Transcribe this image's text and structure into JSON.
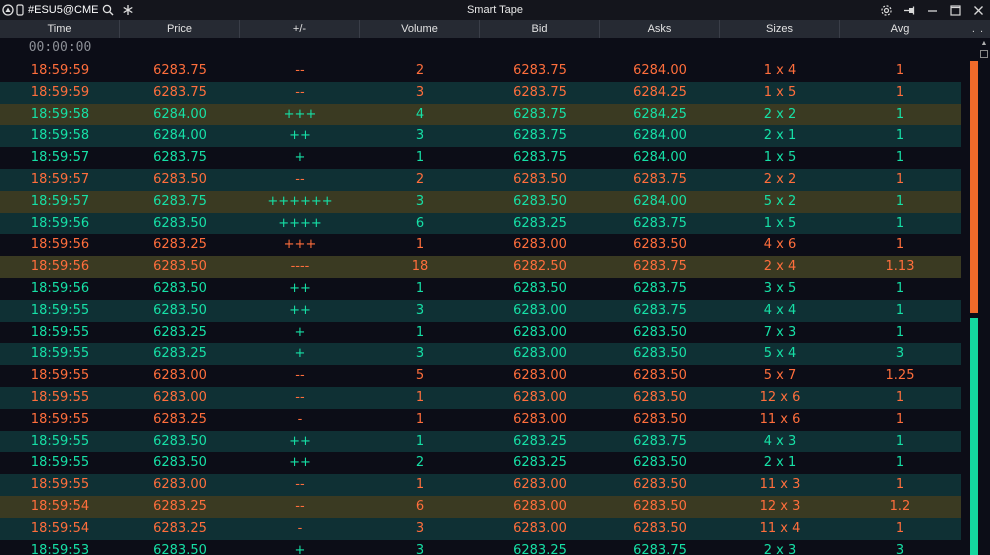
{
  "window": {
    "title": "Smart Tape",
    "symbol": "#ESU5@CME",
    "icons": [
      "app-logo-icon",
      "phone-icon",
      "search-icon",
      "asterisk-icon",
      "settings-icon",
      "pin-icon",
      "minimize-icon",
      "maximize-icon",
      "close-icon"
    ]
  },
  "header": {
    "columns": [
      "Time",
      "Price",
      "+/-",
      "Volume",
      "Bid",
      "Asks",
      "Sizes",
      "Avg"
    ],
    "more": ". ."
  },
  "ghost_time": "00:00:00",
  "colors": {
    "up": "#16e0a6",
    "down": "#ff6e3c",
    "row_dark": "#0c0d17",
    "row_teal": "#0f3034",
    "row_olive": "#3a3a22",
    "scroll_sell": "#f06a2a",
    "scroll_buy": "#14d79e"
  },
  "rows": [
    {
      "time": "18:59:59",
      "price": "6283.75",
      "delta": "--",
      "volume": "2",
      "bid": "6283.75",
      "ask": "6284.00",
      "sizes": "1 x 4",
      "avg": "1",
      "dir": "down",
      "bg": 0
    },
    {
      "time": "18:59:59",
      "price": "6283.75",
      "delta": "--",
      "volume": "3",
      "bid": "6283.75",
      "ask": "6284.25",
      "sizes": "1 x 5",
      "avg": "1",
      "dir": "down",
      "bg": 1
    },
    {
      "time": "18:59:58",
      "price": "6284.00",
      "delta": "+++",
      "volume": "4",
      "bid": "6283.75",
      "ask": "6284.25",
      "sizes": "2 x 2",
      "avg": "1",
      "dir": "up",
      "bg": 2
    },
    {
      "time": "18:59:58",
      "price": "6284.00",
      "delta": "++",
      "volume": "3",
      "bid": "6283.75",
      "ask": "6284.00",
      "sizes": "2 x 1",
      "avg": "1",
      "dir": "up",
      "bg": 1
    },
    {
      "time": "18:59:57",
      "price": "6283.75",
      "delta": "+",
      "volume": "1",
      "bid": "6283.75",
      "ask": "6284.00",
      "sizes": "1 x 5",
      "avg": "1",
      "dir": "up",
      "bg": 0
    },
    {
      "time": "18:59:57",
      "price": "6283.50",
      "delta": "--",
      "volume": "2",
      "bid": "6283.50",
      "ask": "6283.75",
      "sizes": "2 x 2",
      "avg": "1",
      "dir": "down",
      "bg": 1
    },
    {
      "time": "18:59:57",
      "price": "6283.75",
      "delta": "++++++",
      "volume": "3",
      "bid": "6283.50",
      "ask": "6284.00",
      "sizes": "5 x 2",
      "avg": "1",
      "dir": "up",
      "bg": 2
    },
    {
      "time": "18:59:56",
      "price": "6283.50",
      "delta": "++++",
      "volume": "6",
      "bid": "6283.25",
      "ask": "6283.75",
      "sizes": "1 x 5",
      "avg": "1",
      "dir": "up",
      "bg": 1
    },
    {
      "time": "18:59:56",
      "price": "6283.25",
      "delta": "+++",
      "volume": "1",
      "bid": "6283.00",
      "ask": "6283.50",
      "sizes": "4 x 6",
      "avg": "1",
      "dir": "down",
      "bg": 0
    },
    {
      "time": "18:59:56",
      "price": "6283.50",
      "delta": "----",
      "volume": "18",
      "bid": "6282.50",
      "ask": "6283.75",
      "sizes": "2 x 4",
      "avg": "1.13",
      "dir": "down",
      "bg": 2
    },
    {
      "time": "18:59:56",
      "price": "6283.50",
      "delta": "++",
      "volume": "1",
      "bid": "6283.50",
      "ask": "6283.75",
      "sizes": "3 x 5",
      "avg": "1",
      "dir": "up",
      "bg": 0
    },
    {
      "time": "18:59:55",
      "price": "6283.50",
      "delta": "++",
      "volume": "3",
      "bid": "6283.00",
      "ask": "6283.75",
      "sizes": "4 x 4",
      "avg": "1",
      "dir": "up",
      "bg": 1
    },
    {
      "time": "18:59:55",
      "price": "6283.25",
      "delta": "+",
      "volume": "1",
      "bid": "6283.00",
      "ask": "6283.50",
      "sizes": "7 x 3",
      "avg": "1",
      "dir": "up",
      "bg": 0
    },
    {
      "time": "18:59:55",
      "price": "6283.25",
      "delta": "+",
      "volume": "3",
      "bid": "6283.00",
      "ask": "6283.50",
      "sizes": "5 x 4",
      "avg": "3",
      "dir": "up",
      "bg": 1
    },
    {
      "time": "18:59:55",
      "price": "6283.00",
      "delta": "--",
      "volume": "5",
      "bid": "6283.00",
      "ask": "6283.50",
      "sizes": "5 x 7",
      "avg": "1.25",
      "dir": "down",
      "bg": 0
    },
    {
      "time": "18:59:55",
      "price": "6283.00",
      "delta": "--",
      "volume": "1",
      "bid": "6283.00",
      "ask": "6283.50",
      "sizes": "12 x 6",
      "avg": "1",
      "dir": "down",
      "bg": 1
    },
    {
      "time": "18:59:55",
      "price": "6283.25",
      "delta": "-",
      "volume": "1",
      "bid": "6283.00",
      "ask": "6283.50",
      "sizes": "11 x 6",
      "avg": "1",
      "dir": "down",
      "bg": 0
    },
    {
      "time": "18:59:55",
      "price": "6283.50",
      "delta": "++",
      "volume": "1",
      "bid": "6283.25",
      "ask": "6283.75",
      "sizes": "4 x 3",
      "avg": "1",
      "dir": "up",
      "bg": 1
    },
    {
      "time": "18:59:55",
      "price": "6283.50",
      "delta": "++",
      "volume": "2",
      "bid": "6283.25",
      "ask": "6283.50",
      "sizes": "2 x 1",
      "avg": "1",
      "dir": "up",
      "bg": 0
    },
    {
      "time": "18:59:55",
      "price": "6283.00",
      "delta": "--",
      "volume": "1",
      "bid": "6283.00",
      "ask": "6283.50",
      "sizes": "11 x 3",
      "avg": "1",
      "dir": "down",
      "bg": 1
    },
    {
      "time": "18:59:54",
      "price": "6283.25",
      "delta": "--",
      "volume": "6",
      "bid": "6283.00",
      "ask": "6283.50",
      "sizes": "12 x 3",
      "avg": "1.2",
      "dir": "down",
      "bg": 2
    },
    {
      "time": "18:59:54",
      "price": "6283.25",
      "delta": "-",
      "volume": "3",
      "bid": "6283.00",
      "ask": "6283.50",
      "sizes": "11 x 4",
      "avg": "1",
      "dir": "down",
      "bg": 1
    },
    {
      "time": "18:59:53",
      "price": "6283.50",
      "delta": "+",
      "volume": "3",
      "bid": "6283.25",
      "ask": "6283.75",
      "sizes": "2 x 3",
      "avg": "3",
      "dir": "up",
      "bg": 0
    }
  ]
}
